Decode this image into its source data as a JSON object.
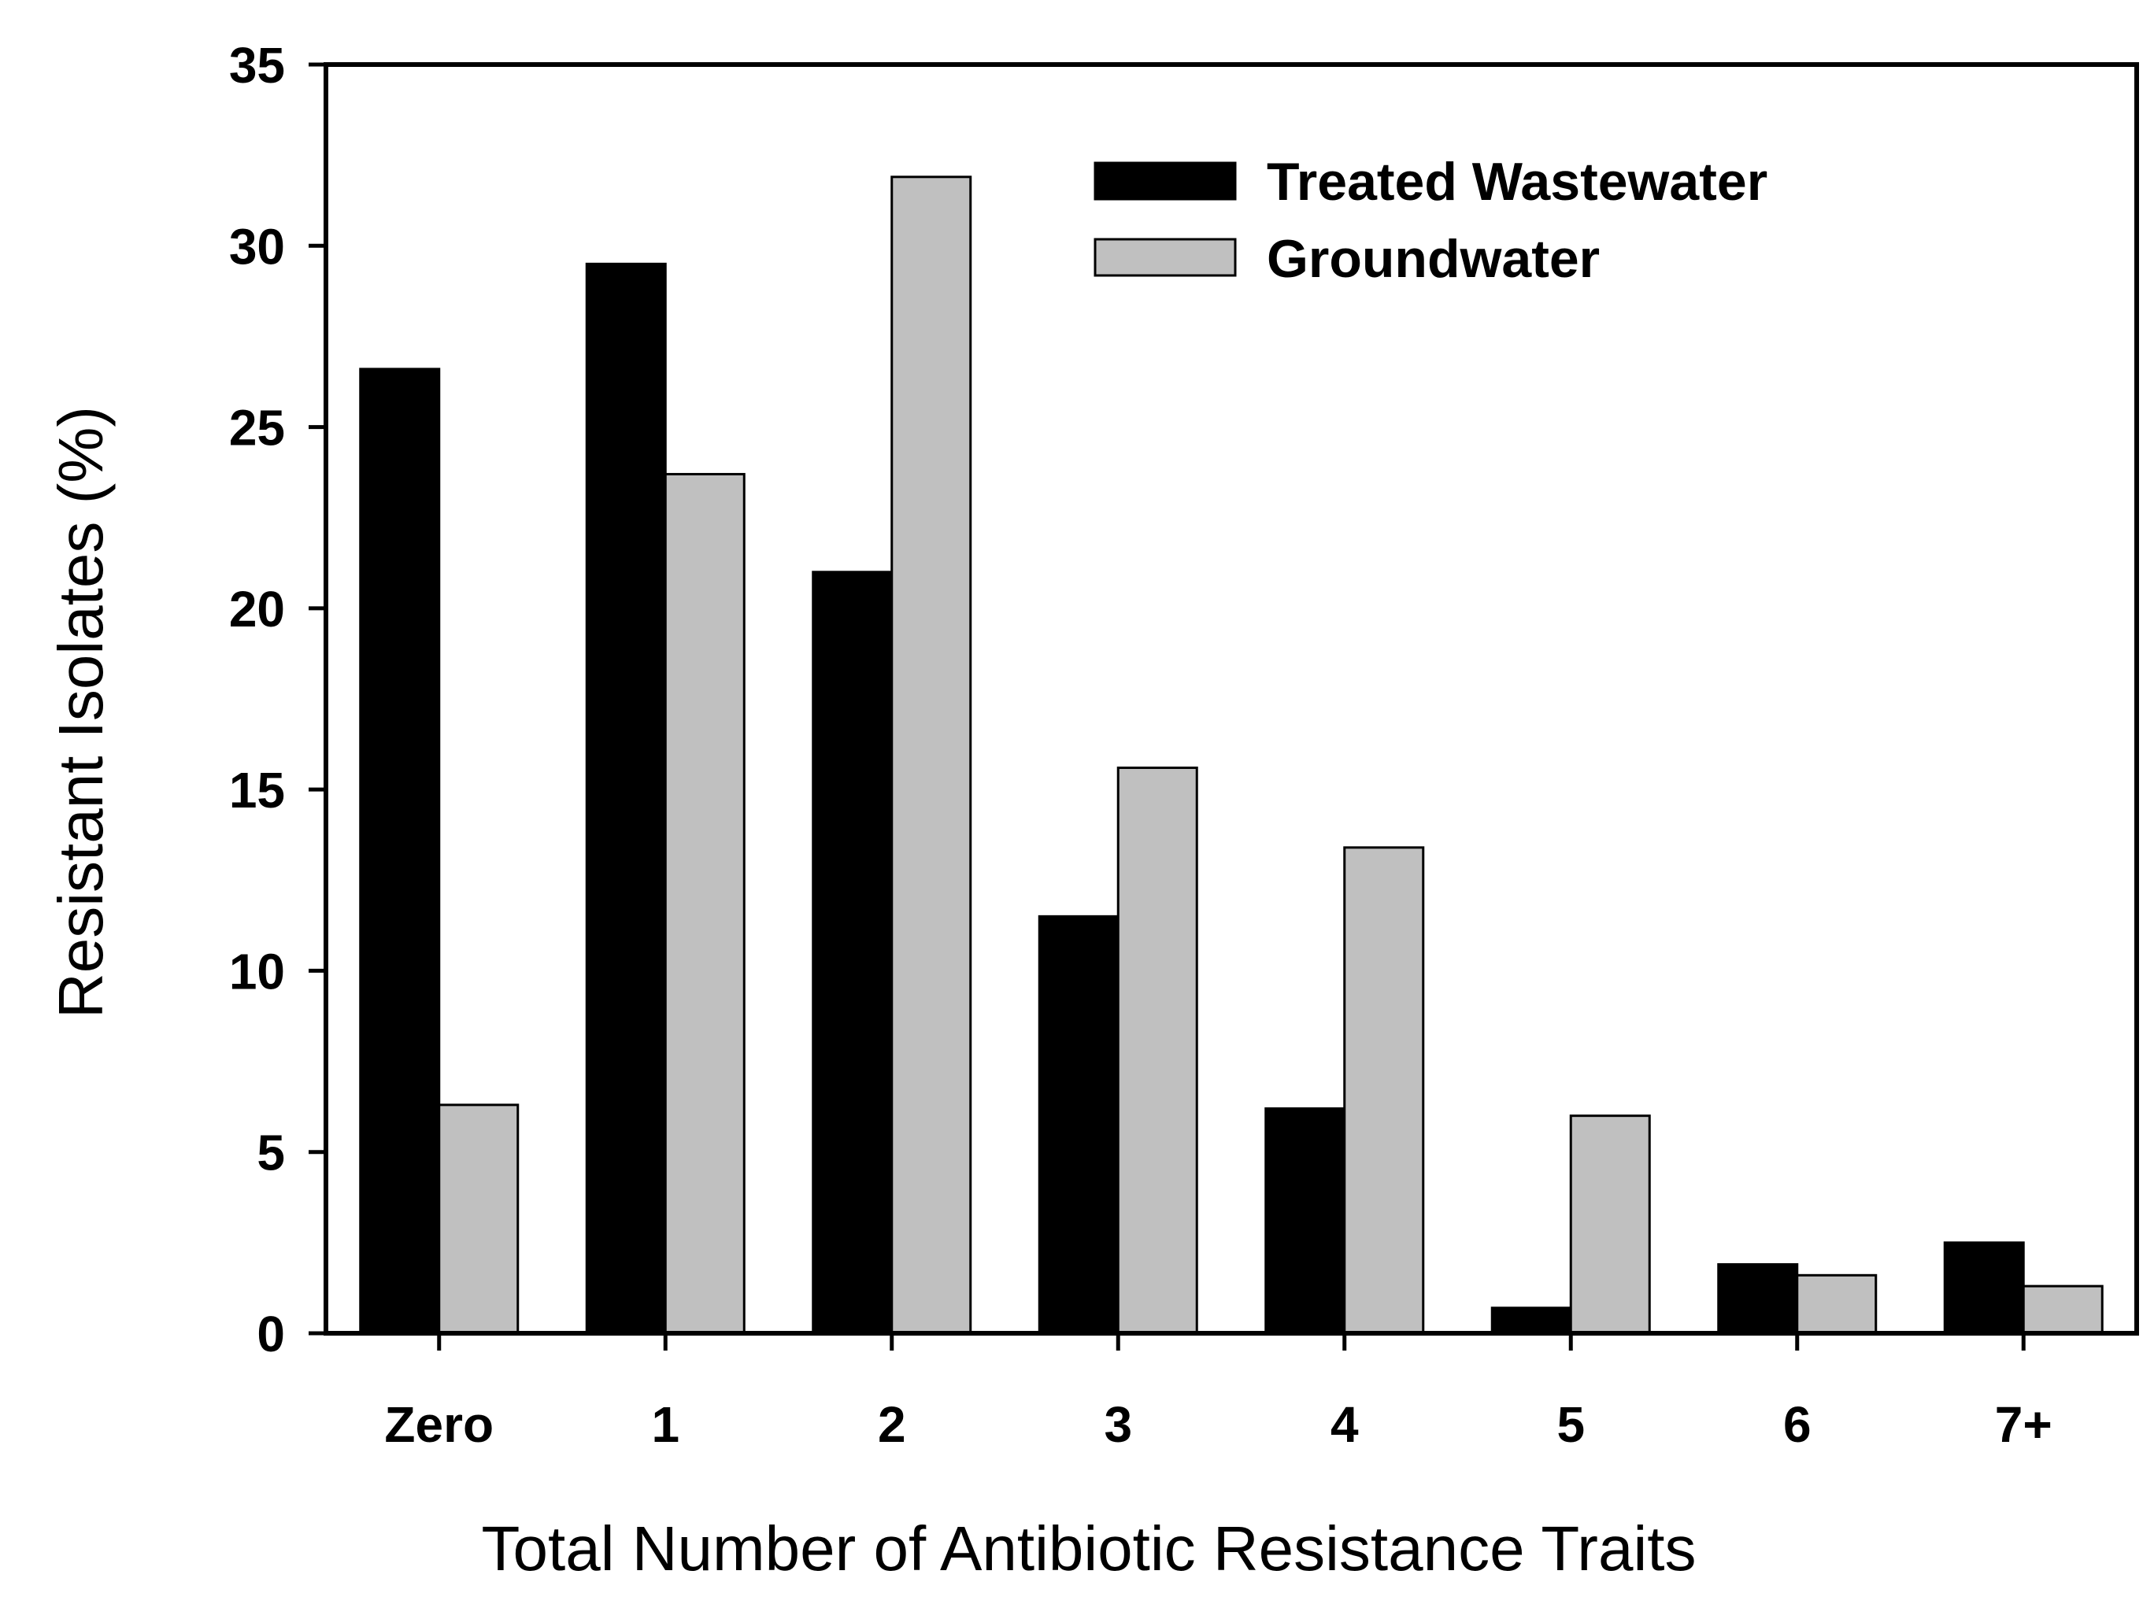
{
  "chart_data": {
    "type": "bar",
    "title": "",
    "xlabel": "Total Number of Antibiotic Resistance Traits",
    "ylabel": "Resistant Isolates (%)",
    "categories": [
      "Zero",
      "1",
      "2",
      "3",
      "4",
      "5",
      "6",
      "7+"
    ],
    "ylim": [
      0,
      35
    ],
    "yticks": [
      "0",
      "5",
      "10",
      "15",
      "20",
      "25",
      "30",
      "35"
    ],
    "grid": false,
    "legend_position": "top-right",
    "series": [
      {
        "name": "Treated Wastewater",
        "color": "#000000",
        "values": [
          26.6,
          29.5,
          21.0,
          11.5,
          6.2,
          0.7,
          1.9,
          2.5
        ]
      },
      {
        "name": "Groundwater",
        "color": "#c0c0c0",
        "values": [
          6.3,
          23.7,
          31.9,
          15.6,
          13.4,
          6.0,
          1.6,
          1.3
        ]
      }
    ]
  }
}
